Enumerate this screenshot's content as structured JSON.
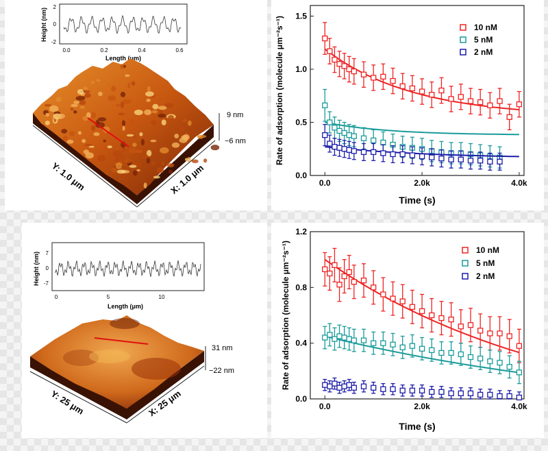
{
  "colors": {
    "red": "#ee2222",
    "teal": "#1a9a9a",
    "blue": "#1a1aa8",
    "afm_dark": "#6a1c04",
    "afm_mid": "#cc5a0e",
    "afm_light": "#f6bc58"
  },
  "afm_top": {
    "profile_ylabel": "Height (nm)",
    "profile_xlabel": "Length (μm)",
    "profile_yticks": [
      "2",
      "0",
      "-2"
    ],
    "profile_xticks": [
      "0.0",
      "0.2",
      "0.4",
      "0.6"
    ],
    "scale_max": "9 nm",
    "scale_min": "−6 nm",
    "y_axis_label": "Y: 1.0 μm",
    "x_axis_label": "X: 1.0 μm"
  },
  "afm_bottom": {
    "profile_ylabel": "Height (nm)",
    "profile_xlabel": "Length (μm)",
    "profile_yticks": [
      "7",
      "0",
      "-7"
    ],
    "profile_xticks": [
      "0",
      "5",
      "10"
    ],
    "scale_max": "31 nm",
    "scale_min": "−22 nm",
    "y_axis_label": "Y: 25 μm",
    "x_axis_label": "X: 25 μm"
  },
  "chart_data": [
    {
      "type": "scatter",
      "title": "",
      "xlabel": "Time (s)",
      "ylabel": "Rate of adsorption (molecule μm⁻²s⁻¹)",
      "xlim": [
        -300,
        4100
      ],
      "ylim": [
        0,
        1.6
      ],
      "xticks": [
        0,
        2000,
        4000
      ],
      "xtick_labels": [
        "0.0",
        "2.0k",
        "4.0k"
      ],
      "yticks": [
        0,
        0.5,
        1.0,
        1.5
      ],
      "ytick_labels": [
        "0.0",
        "0.5",
        "1.0",
        "1.5"
      ],
      "legend_position": "top-right",
      "series": [
        {
          "name": "10 nM",
          "color": "#ee2222",
          "x": [
            0,
            100,
            200,
            300,
            400,
            500,
            600,
            800,
            1000,
            1200,
            1400,
            1600,
            1800,
            2000,
            2200,
            2400,
            2600,
            2800,
            3000,
            3200,
            3400,
            3600,
            3800,
            4000
          ],
          "y": [
            1.29,
            1.17,
            1.09,
            1.05,
            1.03,
            1.0,
            0.98,
            0.95,
            0.92,
            0.93,
            0.89,
            0.84,
            0.82,
            0.79,
            0.76,
            0.8,
            0.72,
            0.74,
            0.7,
            0.69,
            0.66,
            0.7,
            0.55,
            0.67
          ],
          "err": [
            0.15,
            0.12,
            0.12,
            0.12,
            0.12,
            0.12,
            0.12,
            0.12,
            0.12,
            0.12,
            0.12,
            0.12,
            0.12,
            0.12,
            0.12,
            0.12,
            0.12,
            0.12,
            0.12,
            0.12,
            0.12,
            0.12,
            0.12,
            0.12
          ],
          "fit": {
            "a": 0.64,
            "b": 0.55,
            "tau": 1800
          }
        },
        {
          "name": "5 nM",
          "color": "#1a9a9a",
          "x": [
            0,
            100,
            200,
            300,
            400,
            500,
            600,
            800,
            1000,
            1200,
            1400,
            1600,
            1800,
            2000,
            2200,
            2400,
            2600,
            2800,
            3000,
            3200,
            3400,
            3600
          ],
          "y": [
            0.66,
            0.5,
            0.45,
            0.42,
            0.4,
            0.38,
            0.37,
            0.35,
            0.33,
            0.31,
            0.29,
            0.27,
            0.26,
            0.25,
            0.23,
            0.22,
            0.21,
            0.21,
            0.2,
            0.19,
            0.18,
            0.17
          ],
          "err": [
            0.15,
            0.1,
            0.1,
            0.1,
            0.1,
            0.1,
            0.1,
            0.1,
            0.1,
            0.1,
            0.1,
            0.1,
            0.1,
            0.1,
            0.1,
            0.1,
            0.1,
            0.1,
            0.1,
            0.1,
            0.1,
            0.1
          ],
          "fit": {
            "a": 0.12,
            "b": 0.38,
            "tau": 1300
          }
        },
        {
          "name": "2 nM",
          "color": "#1a1aa8",
          "x": [
            0,
            100,
            200,
            300,
            400,
            500,
            600,
            800,
            1000,
            1200,
            1400,
            1600,
            1800,
            2000,
            2200,
            2400,
            2600,
            2800,
            3000,
            3200,
            3400,
            3600
          ],
          "y": [
            0.38,
            0.3,
            0.27,
            0.26,
            0.25,
            0.24,
            0.23,
            0.22,
            0.22,
            0.21,
            0.2,
            0.2,
            0.19,
            0.18,
            0.17,
            0.16,
            0.15,
            0.15,
            0.14,
            0.14,
            0.13,
            0.13
          ],
          "err": [
            0.1,
            0.08,
            0.08,
            0.08,
            0.08,
            0.08,
            0.08,
            0.08,
            0.08,
            0.08,
            0.08,
            0.08,
            0.08,
            0.08,
            0.08,
            0.08,
            0.08,
            0.08,
            0.08,
            0.08,
            0.08,
            0.08
          ],
          "fit": {
            "a": 0.11,
            "b": 0.16,
            "tau": 2200
          }
        }
      ]
    },
    {
      "type": "scatter",
      "title": "",
      "xlabel": "Time (s)",
      "ylabel": "Rate of adsorption (molecule μm⁻²s⁻¹)",
      "xlim": [
        -300,
        4100
      ],
      "ylim": [
        0,
        1.2
      ],
      "xticks": [
        0,
        2000,
        4000
      ],
      "xtick_labels": [
        "0.0",
        "2.0k",
        "4.0k"
      ],
      "yticks": [
        0,
        0.4,
        0.8,
        1.2
      ],
      "ytick_labels": [
        "0.0",
        "0.4",
        "0.8",
        "1.2"
      ],
      "legend_position": "top-right",
      "series": [
        {
          "name": "10 nM",
          "color": "#ee2222",
          "x": [
            0,
            100,
            200,
            300,
            400,
            500,
            600,
            800,
            1000,
            1200,
            1400,
            1600,
            1800,
            2000,
            2200,
            2400,
            2600,
            2800,
            3000,
            3200,
            3400,
            3600,
            3800,
            4000
          ],
          "y": [
            0.93,
            0.9,
            0.96,
            0.82,
            0.88,
            0.91,
            0.84,
            0.85,
            0.8,
            0.75,
            0.72,
            0.7,
            0.66,
            0.63,
            0.6,
            0.58,
            0.57,
            0.52,
            0.53,
            0.49,
            0.47,
            0.47,
            0.45,
            0.38
          ],
          "err": [
            0.12,
            0.12,
            0.12,
            0.12,
            0.12,
            0.12,
            0.12,
            0.12,
            0.12,
            0.12,
            0.12,
            0.12,
            0.12,
            0.12,
            0.12,
            0.12,
            0.12,
            0.12,
            0.12,
            0.12,
            0.12,
            0.12,
            0.12,
            0.12
          ],
          "fit": {
            "a": 1.18,
            "b": -0.18,
            "tau": 4800
          }
        },
        {
          "name": "5 nM",
          "color": "#1a9a9a",
          "x": [
            0,
            100,
            200,
            300,
            400,
            500,
            600,
            800,
            1000,
            1200,
            1400,
            1600,
            1800,
            2000,
            2200,
            2400,
            2600,
            2800,
            3000,
            3200,
            3400,
            3600,
            3800,
            4000
          ],
          "y": [
            0.44,
            0.46,
            0.43,
            0.45,
            0.44,
            0.43,
            0.42,
            0.42,
            0.4,
            0.4,
            0.39,
            0.37,
            0.38,
            0.36,
            0.35,
            0.33,
            0.33,
            0.32,
            0.3,
            0.29,
            0.27,
            0.26,
            0.23,
            0.19
          ],
          "err": [
            0.08,
            0.08,
            0.08,
            0.08,
            0.08,
            0.08,
            0.08,
            0.08,
            0.08,
            0.08,
            0.08,
            0.08,
            0.08,
            0.08,
            0.08,
            0.08,
            0.08,
            0.08,
            0.08,
            0.08,
            0.08,
            0.08,
            0.08,
            0.08
          ],
          "fit": {
            "a": 0.6,
            "b": -0.15,
            "tau": 7000
          }
        },
        {
          "name": "2 nM",
          "color": "#1a1aa8",
          "x": [
            0,
            100,
            200,
            300,
            400,
            500,
            600,
            800,
            1000,
            1200,
            1400,
            1600,
            1800,
            2000,
            2200,
            2400,
            2600,
            2800,
            3000,
            3200,
            3400,
            3600,
            3800,
            4000
          ],
          "y": [
            0.1,
            0.09,
            0.11,
            0.08,
            0.09,
            0.1,
            0.08,
            0.09,
            0.08,
            0.07,
            0.07,
            0.06,
            0.06,
            0.06,
            0.05,
            0.05,
            0.04,
            0.04,
            0.04,
            0.03,
            0.03,
            0.02,
            0.02,
            0.01
          ],
          "err": [
            0.04,
            0.04,
            0.04,
            0.04,
            0.04,
            0.04,
            0.04,
            0.04,
            0.04,
            0.04,
            0.04,
            0.04,
            0.04,
            0.04,
            0.04,
            0.04,
            0.04,
            0.04,
            0.04,
            0.04,
            0.04,
            0.04,
            0.04,
            0.04
          ],
          "fit": null
        }
      ]
    }
  ]
}
